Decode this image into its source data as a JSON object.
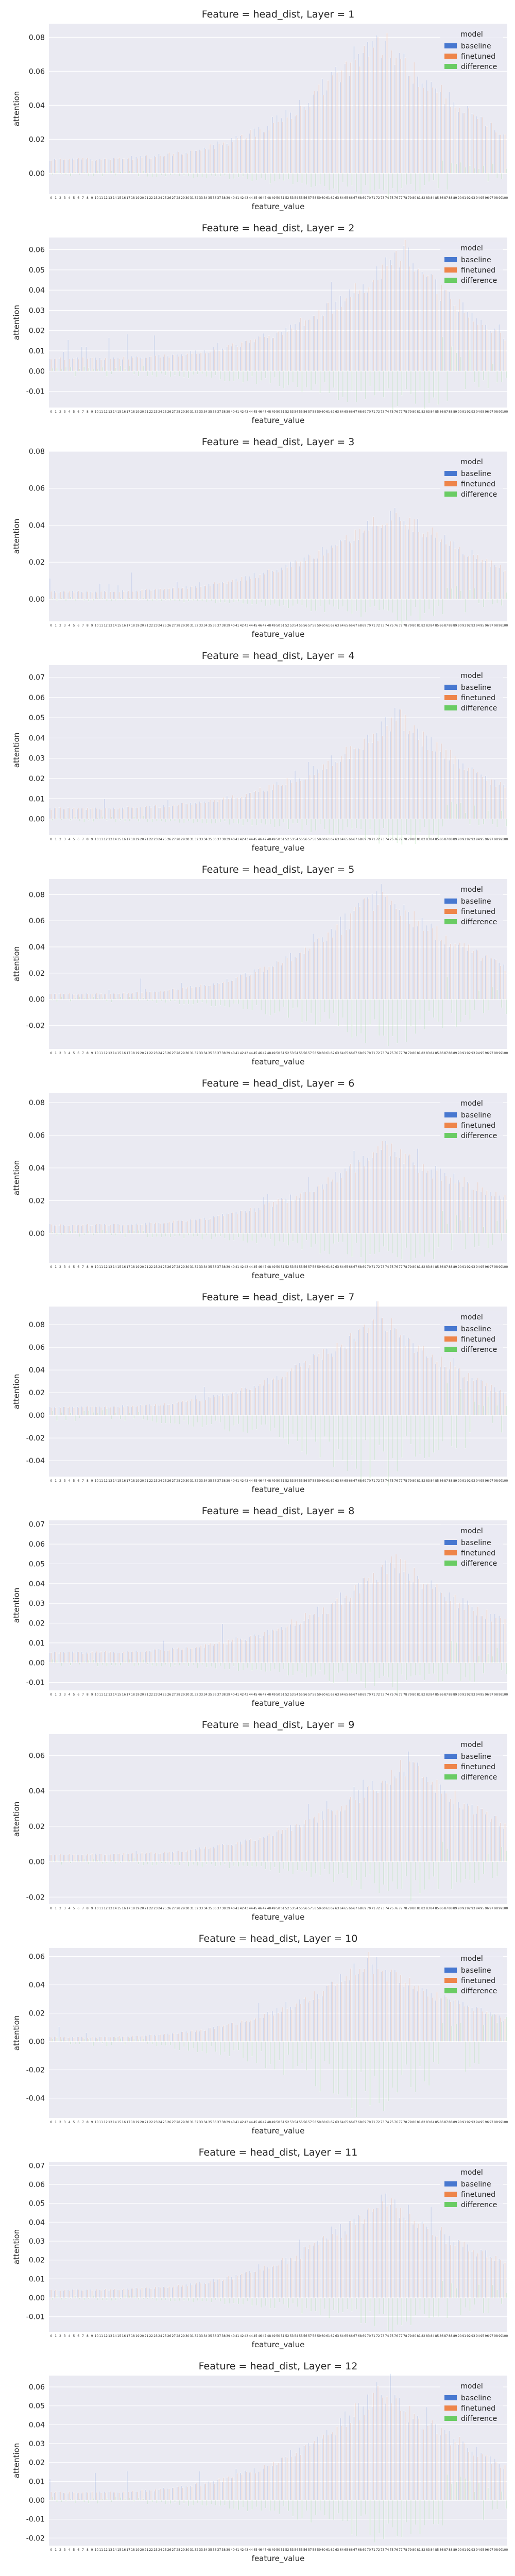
{
  "figure": {
    "xlabel": "feature_value",
    "ylabel": "attention",
    "legend_title": "model",
    "legend_placement": "top-right",
    "background": "#eaeaf2",
    "grid": true,
    "series_colors": {
      "baseline": "#4878d0",
      "finetuned": "#ee854a",
      "difference": "#6acc64"
    }
  },
  "chart_data": [
    {
      "type": "bar",
      "title": "Feature = head_dist, Layer = 1",
      "xlabel": "feature_value",
      "ylabel": "attention",
      "ylim": [
        -0.012,
        0.088
      ],
      "yticks": [
        0.0,
        0.02,
        0.04,
        0.06,
        0.08
      ],
      "yticklabels": [
        "0.00",
        "0.02",
        "0.04",
        "0.06",
        "0.08"
      ],
      "series": [
        "baseline",
        "finetuned",
        "difference"
      ],
      "n_categories": 101,
      "peak_index": 72,
      "peak_value": 0.08,
      "base_value": 0.008,
      "tail_value": 0.022,
      "diff_scale": 0.15
    },
    {
      "type": "bar",
      "title": "Feature = head_dist, Layer = 2",
      "xlabel": "feature_value",
      "ylabel": "attention",
      "ylim": [
        -0.018,
        0.066
      ],
      "yticks": [
        -0.01,
        0.0,
        0.01,
        0.02,
        0.03,
        0.04,
        0.05,
        0.06
      ],
      "yticklabels": [
        "-0.01",
        "0.00",
        "0.01",
        "0.02",
        "0.03",
        "0.04",
        "0.05",
        "0.06"
      ],
      "series": [
        "baseline",
        "finetuned",
        "difference"
      ],
      "n_categories": 101,
      "peak_index": 78,
      "peak_value": 0.058,
      "base_value": 0.006,
      "tail_value": 0.016,
      "diff_scale": 0.3
    },
    {
      "type": "bar",
      "title": "Feature = head_dist, Layer = 3",
      "xlabel": "feature_value",
      "ylabel": "attention",
      "ylim": [
        -0.012,
        0.08
      ],
      "yticks": [
        0.0,
        0.02,
        0.04,
        0.06,
        0.08
      ],
      "yticklabels": [
        "0.00",
        "0.02",
        "0.04",
        "0.06",
        "0.08"
      ],
      "series": [
        "baseline",
        "finetuned",
        "difference"
      ],
      "n_categories": 101,
      "peak_index": 76,
      "peak_value": 0.048,
      "base_value": 0.004,
      "tail_value": 0.016,
      "diff_scale": 0.2
    },
    {
      "type": "bar",
      "title": "Feature = head_dist, Layer = 4",
      "xlabel": "feature_value",
      "ylabel": "attention",
      "ylim": [
        -0.008,
        0.076
      ],
      "yticks": [
        0.0,
        0.01,
        0.02,
        0.03,
        0.04,
        0.05,
        0.06,
        0.07
      ],
      "yticklabels": [
        "0.00",
        "0.01",
        "0.02",
        "0.03",
        "0.04",
        "0.05",
        "0.06",
        "0.07"
      ],
      "series": [
        "baseline",
        "finetuned",
        "difference"
      ],
      "n_categories": 101,
      "peak_index": 77,
      "peak_value": 0.05,
      "base_value": 0.005,
      "tail_value": 0.015,
      "diff_scale": 0.2
    },
    {
      "type": "bar",
      "title": "Feature = head_dist, Layer = 5",
      "xlabel": "feature_value",
      "ylabel": "attention",
      "ylim": [
        -0.038,
        0.092
      ],
      "yticks": [
        -0.02,
        0.0,
        0.02,
        0.04,
        0.06,
        0.08
      ],
      "yticklabels": [
        "-0.02",
        "0.00",
        "0.02",
        "0.04",
        "0.06",
        "0.08"
      ],
      "series": [
        "baseline",
        "finetuned",
        "difference"
      ],
      "n_categories": 101,
      "peak_index": 73,
      "peak_value": 0.08,
      "base_value": 0.004,
      "tail_value": 0.024,
      "diff_scale": 0.35
    },
    {
      "type": "bar",
      "title": "Feature = head_dist, Layer = 6",
      "xlabel": "feature_value",
      "ylabel": "attention",
      "ylim": [
        -0.018,
        0.086
      ],
      "yticks": [
        0.0,
        0.02,
        0.04,
        0.06,
        0.08
      ],
      "yticklabels": [
        "0.00",
        "0.02",
        "0.04",
        "0.06",
        "0.08"
      ],
      "series": [
        "baseline",
        "finetuned",
        "difference"
      ],
      "n_categories": 101,
      "peak_index": 74,
      "peak_value": 0.052,
      "base_value": 0.005,
      "tail_value": 0.022,
      "diff_scale": 0.3
    },
    {
      "type": "bar",
      "title": "Feature = head_dist, Layer = 7",
      "xlabel": "feature_value",
      "ylabel": "attention",
      "ylim": [
        -0.054,
        0.096
      ],
      "yticks": [
        -0.04,
        -0.02,
        0.0,
        0.02,
        0.04,
        0.06,
        0.08
      ],
      "yticklabels": [
        "-0.04",
        "-0.02",
        "0.00",
        "0.02",
        "0.04",
        "0.06",
        "0.08"
      ],
      "series": [
        "baseline",
        "finetuned",
        "difference"
      ],
      "n_categories": 101,
      "peak_index": 72,
      "peak_value": 0.088,
      "base_value": 0.007,
      "tail_value": 0.018,
      "diff_scale": 0.55
    },
    {
      "type": "bar",
      "title": "Feature = head_dist, Layer = 8",
      "xlabel": "feature_value",
      "ylabel": "attention",
      "ylim": [
        -0.014,
        0.072
      ],
      "yticks": [
        -0.01,
        0.0,
        0.01,
        0.02,
        0.03,
        0.04,
        0.05,
        0.06,
        0.07
      ],
      "yticklabels": [
        "-0.01",
        "0.00",
        "0.01",
        "0.02",
        "0.03",
        "0.04",
        "0.05",
        "0.06",
        "0.07"
      ],
      "series": [
        "baseline",
        "finetuned",
        "difference"
      ],
      "n_categories": 101,
      "peak_index": 76,
      "peak_value": 0.05,
      "base_value": 0.005,
      "tail_value": 0.02,
      "diff_scale": 0.25
    },
    {
      "type": "bar",
      "title": "Feature = head_dist, Layer = 9",
      "xlabel": "feature_value",
      "ylabel": "attention",
      "ylim": [
        -0.024,
        0.072
      ],
      "yticks": [
        -0.02,
        0.0,
        0.02,
        0.04,
        0.06
      ],
      "yticklabels": [
        "-0.02",
        "0.00",
        "0.02",
        "0.04",
        "0.06"
      ],
      "series": [
        "baseline",
        "finetuned",
        "difference"
      ],
      "n_categories": 101,
      "peak_index": 79,
      "peak_value": 0.055,
      "base_value": 0.004,
      "tail_value": 0.02,
      "diff_scale": 0.3
    },
    {
      "type": "bar",
      "title": "Feature = head_dist, Layer = 10",
      "xlabel": "feature_value",
      "ylabel": "attention",
      "ylim": [
        -0.054,
        0.066
      ],
      "yticks": [
        -0.04,
        -0.02,
        0.0,
        0.02,
        0.04,
        0.06
      ],
      "yticklabels": [
        "-0.04",
        "-0.02",
        "0.00",
        "0.02",
        "0.04",
        "0.06"
      ],
      "series": [
        "baseline",
        "finetuned",
        "difference"
      ],
      "n_categories": 101,
      "peak_index": 70,
      "peak_value": 0.055,
      "base_value": 0.003,
      "tail_value": 0.016,
      "diff_scale": 0.75
    },
    {
      "type": "bar",
      "title": "Feature = head_dist, Layer = 11",
      "xlabel": "feature_value",
      "ylabel": "attention",
      "ylim": [
        -0.018,
        0.072
      ],
      "yticks": [
        -0.01,
        0.0,
        0.01,
        0.02,
        0.03,
        0.04,
        0.05,
        0.06,
        0.07
      ],
      "yticklabels": [
        "-0.01",
        "0.00",
        "0.01",
        "0.02",
        "0.03",
        "0.04",
        "0.05",
        "0.06",
        "0.07"
      ],
      "series": [
        "baseline",
        "finetuned",
        "difference"
      ],
      "n_categories": 101,
      "peak_index": 74,
      "peak_value": 0.052,
      "base_value": 0.004,
      "tail_value": 0.018,
      "diff_scale": 0.25
    },
    {
      "type": "bar",
      "title": "Feature = head_dist, Layer = 12",
      "xlabel": "feature_value",
      "ylabel": "attention",
      "ylim": [
        -0.024,
        0.066
      ],
      "yticks": [
        -0.02,
        -0.01,
        0.0,
        0.01,
        0.02,
        0.03,
        0.04,
        0.05,
        0.06
      ],
      "yticklabels": [
        "-0.02",
        "-0.01",
        "0.00",
        "0.01",
        "0.02",
        "0.03",
        "0.04",
        "0.05",
        "0.06"
      ],
      "series": [
        "baseline",
        "finetuned",
        "difference"
      ],
      "n_categories": 101,
      "peak_index": 73,
      "peak_value": 0.058,
      "base_value": 0.004,
      "tail_value": 0.018,
      "diff_scale": 0.3
    }
  ]
}
